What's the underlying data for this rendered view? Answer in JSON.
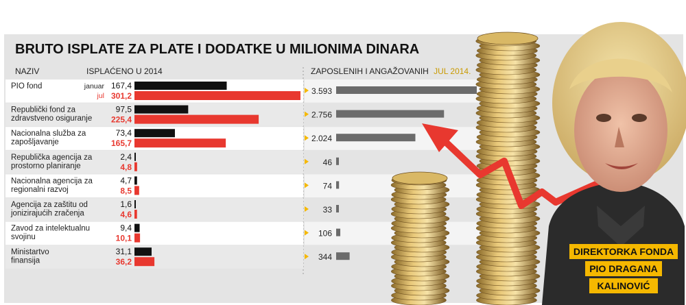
{
  "chart_data": {
    "type": "bar",
    "title": "BRUTO ISPLATE ZA PLATE I DODATKE U MILIONIMA DINARA",
    "columns": {
      "name_header": "NAZIV",
      "paid_header": "ISPLAĆENO U 2014",
      "employees_header_prefix": "ZAPOSLENIH I ANGAŽOVANIH",
      "employees_header_highlight": "JUL 2014."
    },
    "period_labels": {
      "january": "januar",
      "july": "jul"
    },
    "categories": [
      [
        "PIO fond"
      ],
      [
        "Republički fond za",
        "zdravstveno osiguranje"
      ],
      [
        "Nacionalna služba za",
        "zapošljavanje"
      ],
      [
        "Republička agencija za",
        "prostorno planiranje"
      ],
      [
        "Nacionalna agencija za",
        "regionalni razvoj"
      ],
      [
        "Agencija za zaštitu od",
        "jonizirajućih zračenja"
      ],
      [
        "Zavod za intelektualnu",
        "svojinu"
      ],
      [
        "Ministartvo",
        "finansija"
      ]
    ],
    "series": [
      {
        "values": [
          167.4,
          97.5,
          73.4,
          2.4,
          4.7,
          1.6,
          9.4,
          31.1
        ],
        "labels": [
          "167,4",
          "97,5",
          "73,4",
          "2,4",
          "4,7",
          "1,6",
          "9,4",
          "31,1"
        ],
        "color": "#111111"
      },
      {
        "values": [
          301.2,
          225.4,
          165.7,
          4.8,
          8.5,
          4.6,
          10.1,
          36.2
        ],
        "labels": [
          "301,2",
          "225,4",
          "165,7",
          "4,8",
          "8,5",
          "4,6",
          "10,1",
          "36,2"
        ],
        "color": "#e8382f"
      }
    ],
    "employees": {
      "values": [
        3593,
        2756,
        2024,
        46,
        74,
        33,
        106,
        344
      ],
      "labels": [
        "3.593",
        "2.756",
        "2.024",
        "46",
        "74",
        "33",
        "106",
        "344"
      ],
      "color": "#6b6b6b"
    },
    "caption": [
      "DIREKTORKA FONDA",
      "PIO DRAGANA",
      "KALINOVIĆ"
    ]
  },
  "colors": {
    "panel": "#e4e4e4",
    "row_alt": "#ffffff",
    "accent": "#f5b800",
    "red": "#e8382f",
    "grey_bar": "#6b6b6b"
  }
}
